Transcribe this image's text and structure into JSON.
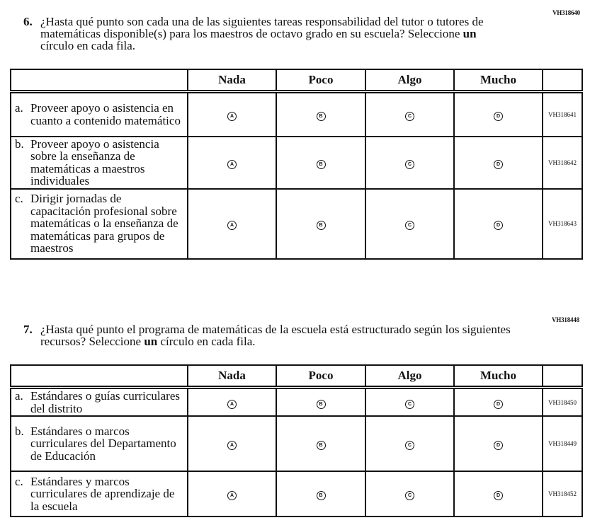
{
  "options": [
    "Nada",
    "Poco",
    "Algo",
    "Mucho"
  ],
  "bubbles": [
    "A",
    "B",
    "C",
    "D"
  ],
  "q6": {
    "code": "VH318640",
    "number": "6.",
    "text_pre": "¿Hasta qué punto son cada una de las siguientes tareas responsabilidad del tutor o tutores de matemáticas disponible(s) para los maestros de octavo grado en su escuela? Seleccione ",
    "text_bold": "un",
    "text_post": " círculo en cada fila.",
    "rows": [
      {
        "letter": "a.",
        "text": "Proveer apoyo o asistencia en cuanto a contenido matemático",
        "code": "VH318641"
      },
      {
        "letter": "b.",
        "text": "Proveer apoyo o asistencia sobre la enseñanza de matemáticas a maestros individuales",
        "code": "VH318642"
      },
      {
        "letter": "c.",
        "text": "Dirigir jornadas de capacitación profesional sobre matemáticas o la enseñanza de matemáticas para grupos de maestros",
        "code": "VH318643"
      }
    ]
  },
  "q7": {
    "code": "VH318448",
    "number": "7.",
    "text_pre": "¿Hasta qué punto el programa de matemáticas de la escuela está estructurado según los siguientes recursos?  Seleccione ",
    "text_bold": "un",
    "text_post": " círculo en cada fila.",
    "rows": [
      {
        "letter": "a.",
        "text": "Estándares o guías curriculares del distrito",
        "code": "VH318450"
      },
      {
        "letter": "b.",
        "text": "Estándares o marcos curriculares del Departamento de Educación",
        "code": "VH318449"
      },
      {
        "letter": "c.",
        "text": "Estándares y marcos curriculares de aprendizaje de la escuela",
        "code": "VH318452"
      }
    ]
  }
}
